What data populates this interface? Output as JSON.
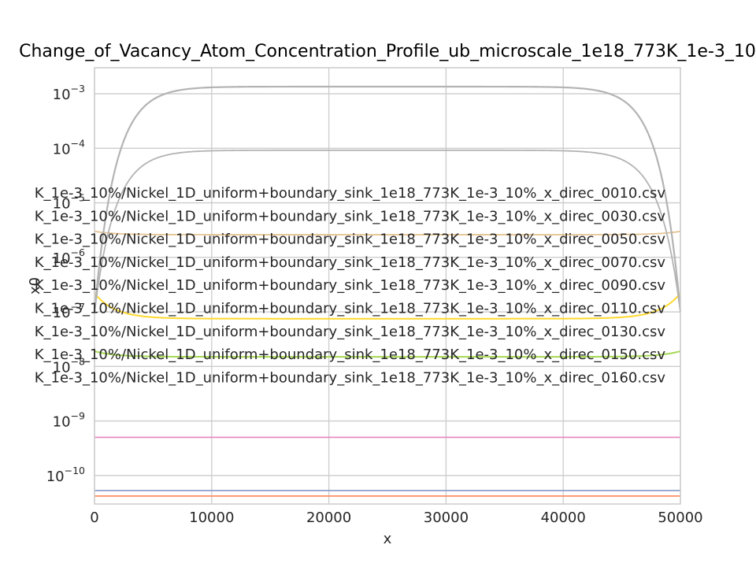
{
  "chart_data": {
    "type": "line",
    "title": "Change_of_Vacancy_Atom_Concentration_Profile_ub_microscale_1e18_773K_1e-3_10",
    "xlabel": "x",
    "ylabel": "x0",
    "xscale": "linear",
    "yscale": "log",
    "xlim": [
      0,
      50000
    ],
    "ylim": [
      3e-11,
      0.003
    ],
    "grid": true,
    "legend_placement": "left, overlapping plot",
    "x_ticks": [
      "0",
      "10000",
      "20000",
      "30000",
      "40000",
      "50000"
    ],
    "y_ticks": [
      {
        "base": "10",
        "exp": "−10"
      },
      {
        "base": "10",
        "exp": "−9"
      },
      {
        "base": "10",
        "exp": "−8"
      },
      {
        "base": "10",
        "exp": "−7"
      },
      {
        "base": "10",
        "exp": "−6"
      },
      {
        "base": "10",
        "exp": "−5"
      },
      {
        "base": "10",
        "exp": "−4"
      },
      {
        "base": "10",
        "exp": "−3"
      }
    ],
    "legend_entries": [
      "K_1e-3_10%/Nickel_1D_uniform+boundary_sink_1e18_773K_1e-3_10%_x_direc_0010.csv",
      "K_1e-3_10%/Nickel_1D_uniform+boundary_sink_1e18_773K_1e-3_10%_x_direc_0030.csv",
      "K_1e-3_10%/Nickel_1D_uniform+boundary_sink_1e18_773K_1e-3_10%_x_direc_0050.csv",
      "K_1e-3_10%/Nickel_1D_uniform+boundary_sink_1e18_773K_1e-3_10%_x_direc_0070.csv",
      "K_1e-3_10%/Nickel_1D_uniform+boundary_sink_1e18_773K_1e-3_10%_x_direc_0090.csv",
      "K_1e-3_10%/Nickel_1D_uniform+boundary_sink_1e18_773K_1e-3_10%_x_direc_0110.csv",
      "K_1e-3_10%/Nickel_1D_uniform+boundary_sink_1e18_773K_1e-3_10%_x_direc_0130.csv",
      "K_1e-3_10%/Nickel_1D_uniform+boundary_sink_1e18_773K_1e-3_10%_x_direc_0150.csv",
      "K_1e-3_10%/Nickel_1D_uniform+boundary_sink_1e18_773K_1e-3_10%_x_direc_0160.csv"
    ],
    "series": [
      {
        "color": "#fc8d62",
        "plateau": 4.2e-11,
        "edge": 4.2e-11,
        "width": 1.8
      },
      {
        "color": "#8da0cb",
        "plateau": 5.3e-11,
        "edge": 5.3e-11,
        "width": 1.8
      },
      {
        "color": "#e78ac3",
        "plateau": 5e-10,
        "edge": 5e-10,
        "width": 1.8
      },
      {
        "color": "#a6d854",
        "plateau": 1.5e-08,
        "edge": 1.9e-08,
        "width": 2.0
      },
      {
        "color": "#ffd92f",
        "plateau": 7.5e-08,
        "edge": 2.2e-07,
        "width": 2.0
      },
      {
        "color": "#e5c494",
        "plateau": 2.6e-06,
        "edge": 3e-06,
        "width": 1.8
      },
      {
        "color": "#b3b3b3",
        "plateau": 9.2e-05,
        "edge": 1e-07,
        "width": 1.8
      },
      {
        "color": "#b3b3b3",
        "plateau": 0.00135,
        "edge": 1e-07,
        "width": 2.2
      }
    ]
  }
}
